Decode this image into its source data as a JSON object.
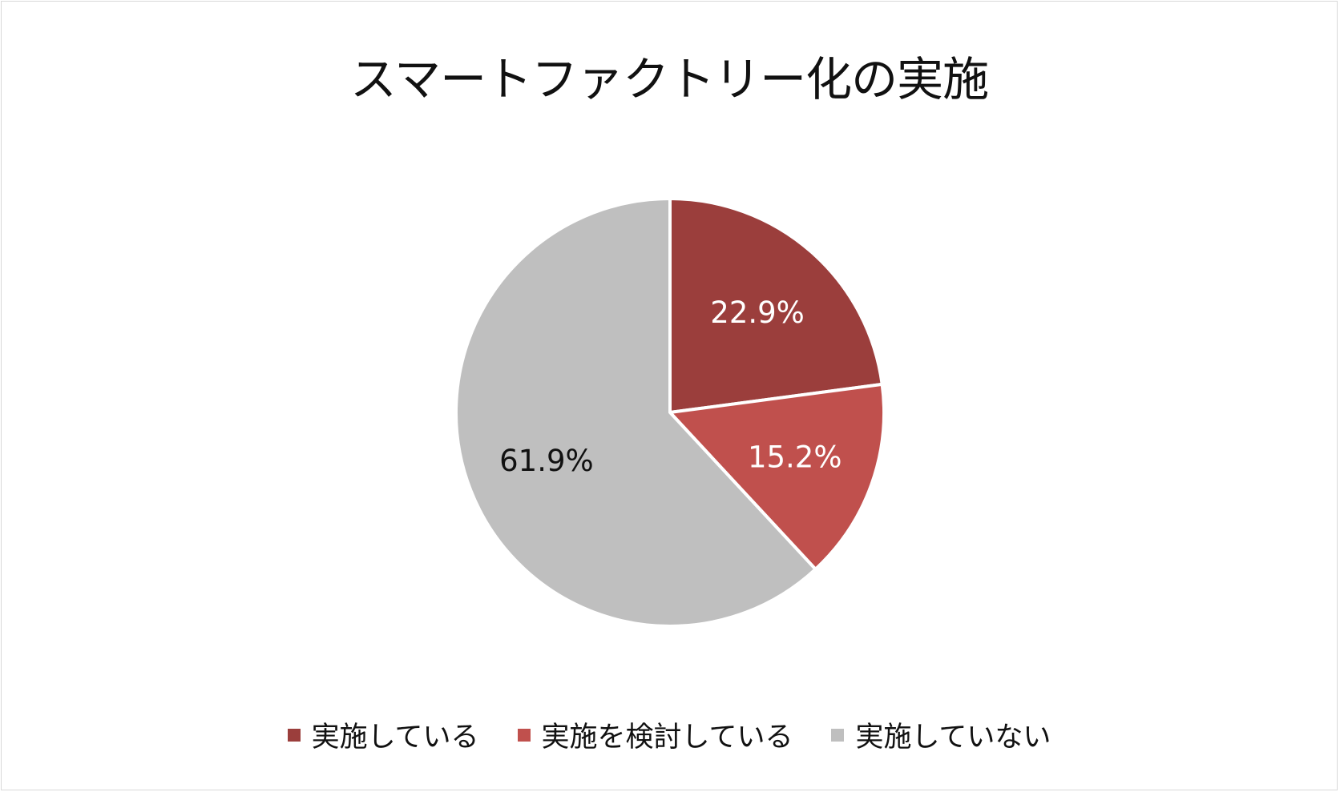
{
  "chart_data": {
    "type": "pie",
    "title": "スマートファクトリー化の実施",
    "categories": [
      "実施している",
      "実施を検討している",
      "実施していない"
    ],
    "values": [
      22.9,
      15.2,
      61.9
    ],
    "value_labels": [
      "22.9%",
      "15.2%",
      "61.9%"
    ],
    "colors": [
      "#9b3e3c",
      "#c0504d",
      "#bfbfbf"
    ],
    "label_colors": [
      "#ffffff",
      "#ffffff",
      "#111111"
    ],
    "legend_position": "bottom"
  }
}
